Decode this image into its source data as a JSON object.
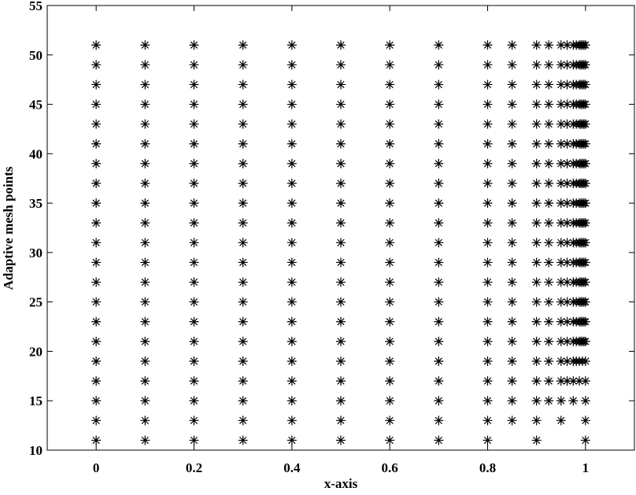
{
  "chart_data": {
    "type": "scatter",
    "x_label": "x-axis",
    "y_label": "Adaptive mesh points",
    "xlim": [
      -0.1,
      1.1
    ],
    "ylim": [
      10,
      55
    ],
    "xticks": [
      0,
      0.2,
      0.4,
      0.6,
      0.8,
      1
    ],
    "yticks": [
      10,
      15,
      20,
      25,
      30,
      35,
      40,
      45,
      50,
      55
    ],
    "color": "#000000",
    "marker": "asterisk",
    "series": [
      {
        "y": 11,
        "x": [
          0,
          0.1,
          0.2,
          0.3,
          0.4,
          0.5,
          0.6,
          0.7,
          0.8,
          0.9,
          1
        ]
      },
      {
        "y": 13,
        "x": [
          0,
          0.1,
          0.2,
          0.3,
          0.4,
          0.5,
          0.6,
          0.7,
          0.8,
          0.85,
          0.9,
          0.95,
          1
        ]
      },
      {
        "y": 15,
        "x": [
          0,
          0.1,
          0.2,
          0.3,
          0.4,
          0.5,
          0.6,
          0.7,
          0.8,
          0.85,
          0.9,
          0.925,
          0.95,
          0.975,
          1
        ]
      },
      {
        "y": 17,
        "x": [
          0,
          0.1,
          0.2,
          0.3,
          0.4,
          0.5,
          0.6,
          0.7,
          0.8,
          0.85,
          0.9,
          0.925,
          0.95,
          0.9625,
          0.975,
          0.9875,
          1
        ]
      },
      {
        "y": 19,
        "x": [
          0,
          0.1,
          0.2,
          0.3,
          0.4,
          0.5,
          0.6,
          0.7,
          0.8,
          0.85,
          0.9,
          0.925,
          0.95,
          0.9625,
          0.975,
          0.98125,
          0.9875,
          0.99375,
          1
        ]
      },
      {
        "y": 21,
        "x": [
          0,
          0.1,
          0.2,
          0.3,
          0.4,
          0.5,
          0.6,
          0.7,
          0.8,
          0.85,
          0.9,
          0.925,
          0.95,
          0.9625,
          0.975,
          0.98125,
          0.9875,
          0.990625,
          0.99375,
          0.996875,
          1
        ]
      },
      {
        "y": 23,
        "x": [
          0,
          0.1,
          0.2,
          0.3,
          0.4,
          0.5,
          0.6,
          0.7,
          0.8,
          0.85,
          0.9,
          0.925,
          0.95,
          0.9625,
          0.975,
          0.98125,
          0.9875,
          0.990625,
          0.99375,
          0.996875,
          1
        ]
      },
      {
        "y": 25,
        "x": [
          0,
          0.1,
          0.2,
          0.3,
          0.4,
          0.5,
          0.6,
          0.7,
          0.8,
          0.85,
          0.9,
          0.925,
          0.95,
          0.9625,
          0.975,
          0.98125,
          0.9875,
          0.990625,
          0.99375,
          0.996875,
          1
        ]
      },
      {
        "y": 27,
        "x": [
          0,
          0.1,
          0.2,
          0.3,
          0.4,
          0.5,
          0.6,
          0.7,
          0.8,
          0.85,
          0.9,
          0.925,
          0.95,
          0.9625,
          0.975,
          0.98125,
          0.9875,
          0.990625,
          0.99375,
          0.996875,
          1
        ]
      },
      {
        "y": 29,
        "x": [
          0,
          0.1,
          0.2,
          0.3,
          0.4,
          0.5,
          0.6,
          0.7,
          0.8,
          0.85,
          0.9,
          0.925,
          0.95,
          0.9625,
          0.975,
          0.98125,
          0.9875,
          0.990625,
          0.99375,
          0.996875,
          1
        ]
      },
      {
        "y": 31,
        "x": [
          0,
          0.1,
          0.2,
          0.3,
          0.4,
          0.5,
          0.6,
          0.7,
          0.8,
          0.85,
          0.9,
          0.925,
          0.95,
          0.9625,
          0.975,
          0.98125,
          0.9875,
          0.990625,
          0.99375,
          0.996875,
          1
        ]
      },
      {
        "y": 33,
        "x": [
          0,
          0.1,
          0.2,
          0.3,
          0.4,
          0.5,
          0.6,
          0.7,
          0.8,
          0.85,
          0.9,
          0.925,
          0.95,
          0.9625,
          0.975,
          0.98125,
          0.9875,
          0.990625,
          0.99375,
          0.996875,
          1
        ]
      },
      {
        "y": 35,
        "x": [
          0,
          0.1,
          0.2,
          0.3,
          0.4,
          0.5,
          0.6,
          0.7,
          0.8,
          0.85,
          0.9,
          0.925,
          0.95,
          0.9625,
          0.975,
          0.98125,
          0.9875,
          0.990625,
          0.99375,
          0.996875,
          1
        ]
      },
      {
        "y": 37,
        "x": [
          0,
          0.1,
          0.2,
          0.3,
          0.4,
          0.5,
          0.6,
          0.7,
          0.8,
          0.85,
          0.9,
          0.925,
          0.95,
          0.9625,
          0.975,
          0.98125,
          0.9875,
          0.990625,
          0.99375,
          0.996875,
          1
        ]
      },
      {
        "y": 39,
        "x": [
          0,
          0.1,
          0.2,
          0.3,
          0.4,
          0.5,
          0.6,
          0.7,
          0.8,
          0.85,
          0.9,
          0.925,
          0.95,
          0.9625,
          0.975,
          0.98125,
          0.9875,
          0.990625,
          0.99375,
          0.996875,
          1
        ]
      },
      {
        "y": 41,
        "x": [
          0,
          0.1,
          0.2,
          0.3,
          0.4,
          0.5,
          0.6,
          0.7,
          0.8,
          0.85,
          0.9,
          0.925,
          0.95,
          0.9625,
          0.975,
          0.98125,
          0.9875,
          0.990625,
          0.99375,
          0.996875,
          1
        ]
      },
      {
        "y": 43,
        "x": [
          0,
          0.1,
          0.2,
          0.3,
          0.4,
          0.5,
          0.6,
          0.7,
          0.8,
          0.85,
          0.9,
          0.925,
          0.95,
          0.9625,
          0.975,
          0.98125,
          0.9875,
          0.990625,
          0.99375,
          0.996875,
          1
        ]
      },
      {
        "y": 45,
        "x": [
          0,
          0.1,
          0.2,
          0.3,
          0.4,
          0.5,
          0.6,
          0.7,
          0.8,
          0.85,
          0.9,
          0.925,
          0.95,
          0.9625,
          0.975,
          0.98125,
          0.9875,
          0.990625,
          0.99375,
          0.996875,
          1
        ]
      },
      {
        "y": 47,
        "x": [
          0,
          0.1,
          0.2,
          0.3,
          0.4,
          0.5,
          0.6,
          0.7,
          0.8,
          0.85,
          0.9,
          0.925,
          0.95,
          0.9625,
          0.975,
          0.98125,
          0.9875,
          0.990625,
          0.99375,
          0.996875,
          1
        ]
      },
      {
        "y": 49,
        "x": [
          0,
          0.1,
          0.2,
          0.3,
          0.4,
          0.5,
          0.6,
          0.7,
          0.8,
          0.85,
          0.9,
          0.925,
          0.95,
          0.9625,
          0.975,
          0.98125,
          0.9875,
          0.990625,
          0.99375,
          0.996875,
          1
        ]
      },
      {
        "y": 51,
        "x": [
          0,
          0.1,
          0.2,
          0.3,
          0.4,
          0.5,
          0.6,
          0.7,
          0.8,
          0.85,
          0.9,
          0.925,
          0.95,
          0.9625,
          0.975,
          0.98125,
          0.9875,
          0.990625,
          0.99375,
          0.996875,
          1
        ]
      }
    ]
  }
}
